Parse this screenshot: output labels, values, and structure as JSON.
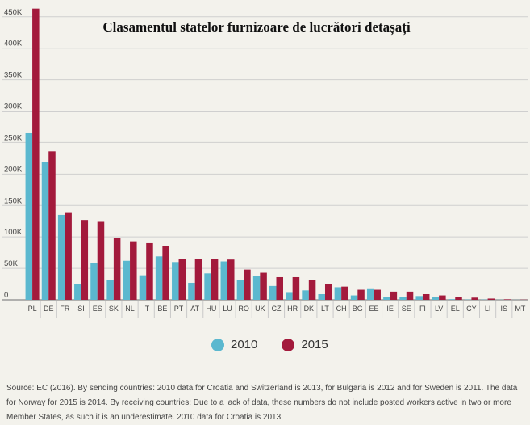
{
  "chart_data": {
    "type": "bar",
    "title": "Clasamentul statelor furnizoare de lucrători detașați",
    "xlabel": "",
    "ylabel": "",
    "ylim": [
      0,
      460000
    ],
    "ytick_values": [
      0,
      50000,
      100000,
      150000,
      200000,
      250000,
      300000,
      350000,
      400000,
      450000
    ],
    "ytick_labels": [
      "0",
      "50K",
      "100K",
      "150K",
      "200K",
      "250K",
      "300K",
      "350K",
      "400K",
      "450K"
    ],
    "grid": true,
    "legend_position": "bottom-center",
    "categories": [
      "PL",
      "DE",
      "FR",
      "SI",
      "ES",
      "SK",
      "NL",
      "IT",
      "BE",
      "PT",
      "AT",
      "HU",
      "LU",
      "RO",
      "UK",
      "CZ",
      "HR",
      "DK",
      "LT",
      "CH",
      "BG",
      "EE",
      "IE",
      "SE",
      "FI",
      "LV",
      "EL",
      "CY",
      "LI",
      "IS",
      "MT"
    ],
    "series": [
      {
        "name": "2010",
        "color": "#5bb8cf",
        "values": [
          266000,
          219000,
          135000,
          25000,
          59000,
          31000,
          62000,
          39000,
          69000,
          60000,
          27000,
          42000,
          61000,
          31000,
          38000,
          22000,
          11000,
          15000,
          9000,
          20000,
          7000,
          17000,
          4000,
          4000,
          6000,
          4000,
          1000,
          500,
          400,
          200,
          100
        ]
      },
      {
        "name": "2015",
        "color": "#a31a3c",
        "values": [
          463000,
          236000,
          138000,
          127000,
          124000,
          98000,
          93000,
          90000,
          86000,
          65000,
          65000,
          65000,
          64000,
          48000,
          43000,
          36000,
          36000,
          31000,
          25000,
          21000,
          16000,
          16000,
          13000,
          13000,
          9000,
          7000,
          5000,
          3500,
          2000,
          800,
          300
        ]
      }
    ]
  },
  "source_text": "Source: EC (2016). By sending countries: 2010 data for Croatia and Switzerland is 2013, for Bulgaria is 2012 and for Sweden is 2011. The data for Norway for 2015 is 2014. By receiving countries:   Due to a lack of data, these numbers do not include posted workers active in two or more Member States, as such it is an underestimate. 2010 data for Croatia is 2013."
}
